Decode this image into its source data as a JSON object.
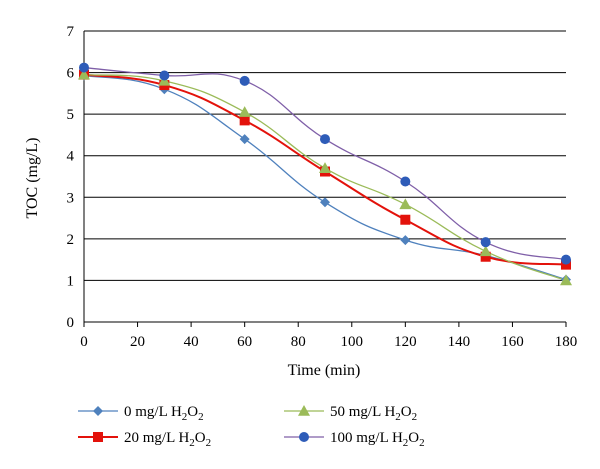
{
  "chart_data": {
    "type": "line",
    "xlabel": "Time (min)",
    "ylabel": "TOC (mg/L)",
    "xlim": [
      0,
      180
    ],
    "ylim": [
      0,
      7
    ],
    "xticks": [
      "0",
      "20",
      "40",
      "60",
      "80",
      "100",
      "120",
      "140",
      "160",
      "180"
    ],
    "yticks": [
      "0",
      "1",
      "2",
      "3",
      "4",
      "5",
      "6",
      "7"
    ],
    "grid": "horizontal",
    "legend_position": "bottom",
    "x": [
      0,
      30,
      60,
      90,
      120,
      150,
      180
    ],
    "series": [
      {
        "name": "0 mg/L H2O2",
        "label_main": "0 mg/L H",
        "label_sub1": "2",
        "label_mid": "O",
        "label_sub2": "2",
        "color": "#4F81BD",
        "marker": "diamond",
        "values": [
          5.93,
          5.6,
          4.4,
          2.88,
          1.97,
          1.6,
          1.02
        ]
      },
      {
        "name": "20 mg/L H2O2",
        "label_main": "20 mg/L H",
        "label_sub1": "2",
        "label_mid": "O",
        "label_sub2": "2",
        "color": "#E3120B",
        "marker": "square",
        "values": [
          5.95,
          5.7,
          4.85,
          3.62,
          2.46,
          1.57,
          1.38
        ]
      },
      {
        "name": "50 mg/L H2O2",
        "label_main": "50 mg/L H",
        "label_sub1": "2",
        "label_mid": "O",
        "label_sub2": "2",
        "color": "#9BBB59",
        "marker": "triangle",
        "values": [
          5.95,
          5.8,
          5.05,
          3.7,
          2.83,
          1.7,
          1.0
        ]
      },
      {
        "name": "100 mg/L H2O2",
        "label_main": "100 mg/L H",
        "label_sub1": "2",
        "label_mid": "O",
        "label_sub2": "2",
        "color": "#7F5FA8",
        "marker_color": "#2E5CB8",
        "marker": "circle",
        "values": [
          6.12,
          5.93,
          5.8,
          4.4,
          3.38,
          1.92,
          1.5
        ]
      }
    ]
  }
}
